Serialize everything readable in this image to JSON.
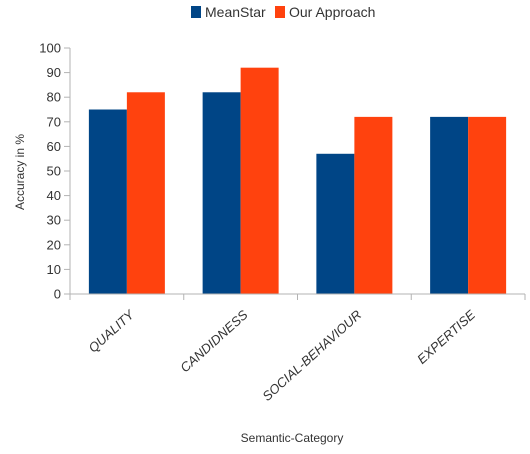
{
  "chart_data": {
    "type": "bar",
    "categories": [
      "QUALITY",
      "CANDIDNESS",
      "SOCIAL-BEHAVIOUR",
      "EXPERTISE"
    ],
    "series": [
      {
        "name": "MeanStar",
        "values": [
          75,
          82,
          57,
          72
        ],
        "color": "#004586"
      },
      {
        "name": "Our Approach",
        "values": [
          82,
          92,
          72,
          72
        ],
        "color": "#ff420e"
      }
    ],
    "xlabel": "Semantic-Category",
    "ylabel": "Accuracy in %",
    "ylim": [
      0,
      100
    ],
    "yticks": [
      0,
      10,
      20,
      30,
      40,
      50,
      60,
      70,
      80,
      90,
      100
    ],
    "grid": false,
    "legend_position": "top-center"
  }
}
